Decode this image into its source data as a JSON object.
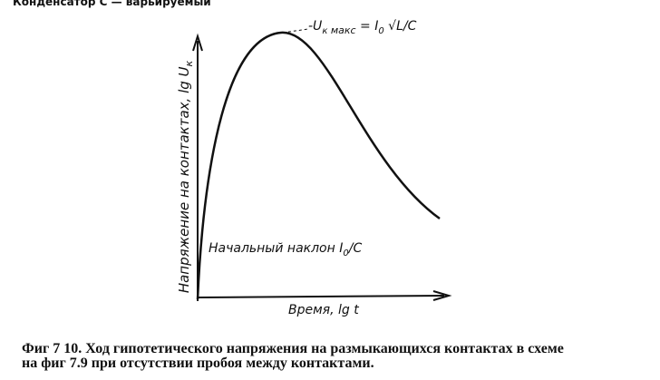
{
  "header": {
    "text": "Конденсатор C — варьируемый"
  },
  "figure": {
    "y_label": [
      "Напряжение  на  контактах,  lg U",
      "к"
    ],
    "peak_label": [
      "-U",
      "к",
      " макс",
      " = I",
      "0",
      " √L/C"
    ],
    "slope_label": [
      "Начальный  наклон  I",
      "0",
      "/C"
    ],
    "x_label": "Время,  lg t"
  },
  "caption": [
    "Фиг  7 10. Ход гипотетического напряжения на размыкающихся контактах в схеме",
    "на фиг  7.9 при отсутствии пробоя между контактами."
  ]
}
